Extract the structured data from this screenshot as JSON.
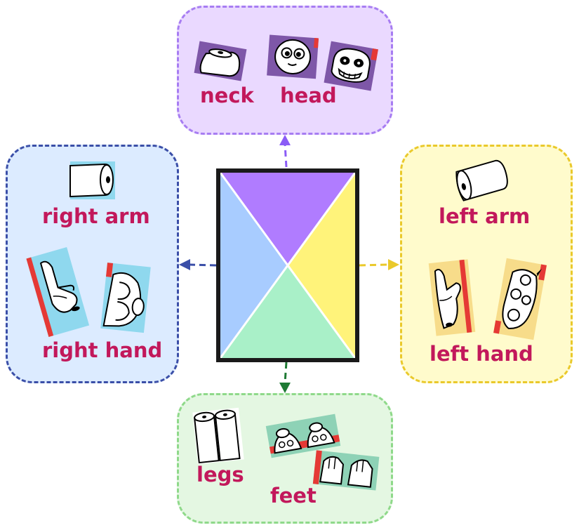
{
  "colors": {
    "top": "#b07cff",
    "left": "#a8ccff",
    "right": "#fff37a",
    "bottom": "#a9f0c8",
    "label": "#c2185b"
  },
  "panels": {
    "top": {
      "labels": {
        "neck": "neck",
        "head": "head"
      }
    },
    "left": {
      "labels": {
        "arm": "right arm",
        "hand": "right hand"
      }
    },
    "right": {
      "labels": {
        "arm": "left arm",
        "hand": "left hand"
      }
    },
    "bottom": {
      "labels": {
        "legs": "legs",
        "feet": "feet"
      }
    }
  }
}
